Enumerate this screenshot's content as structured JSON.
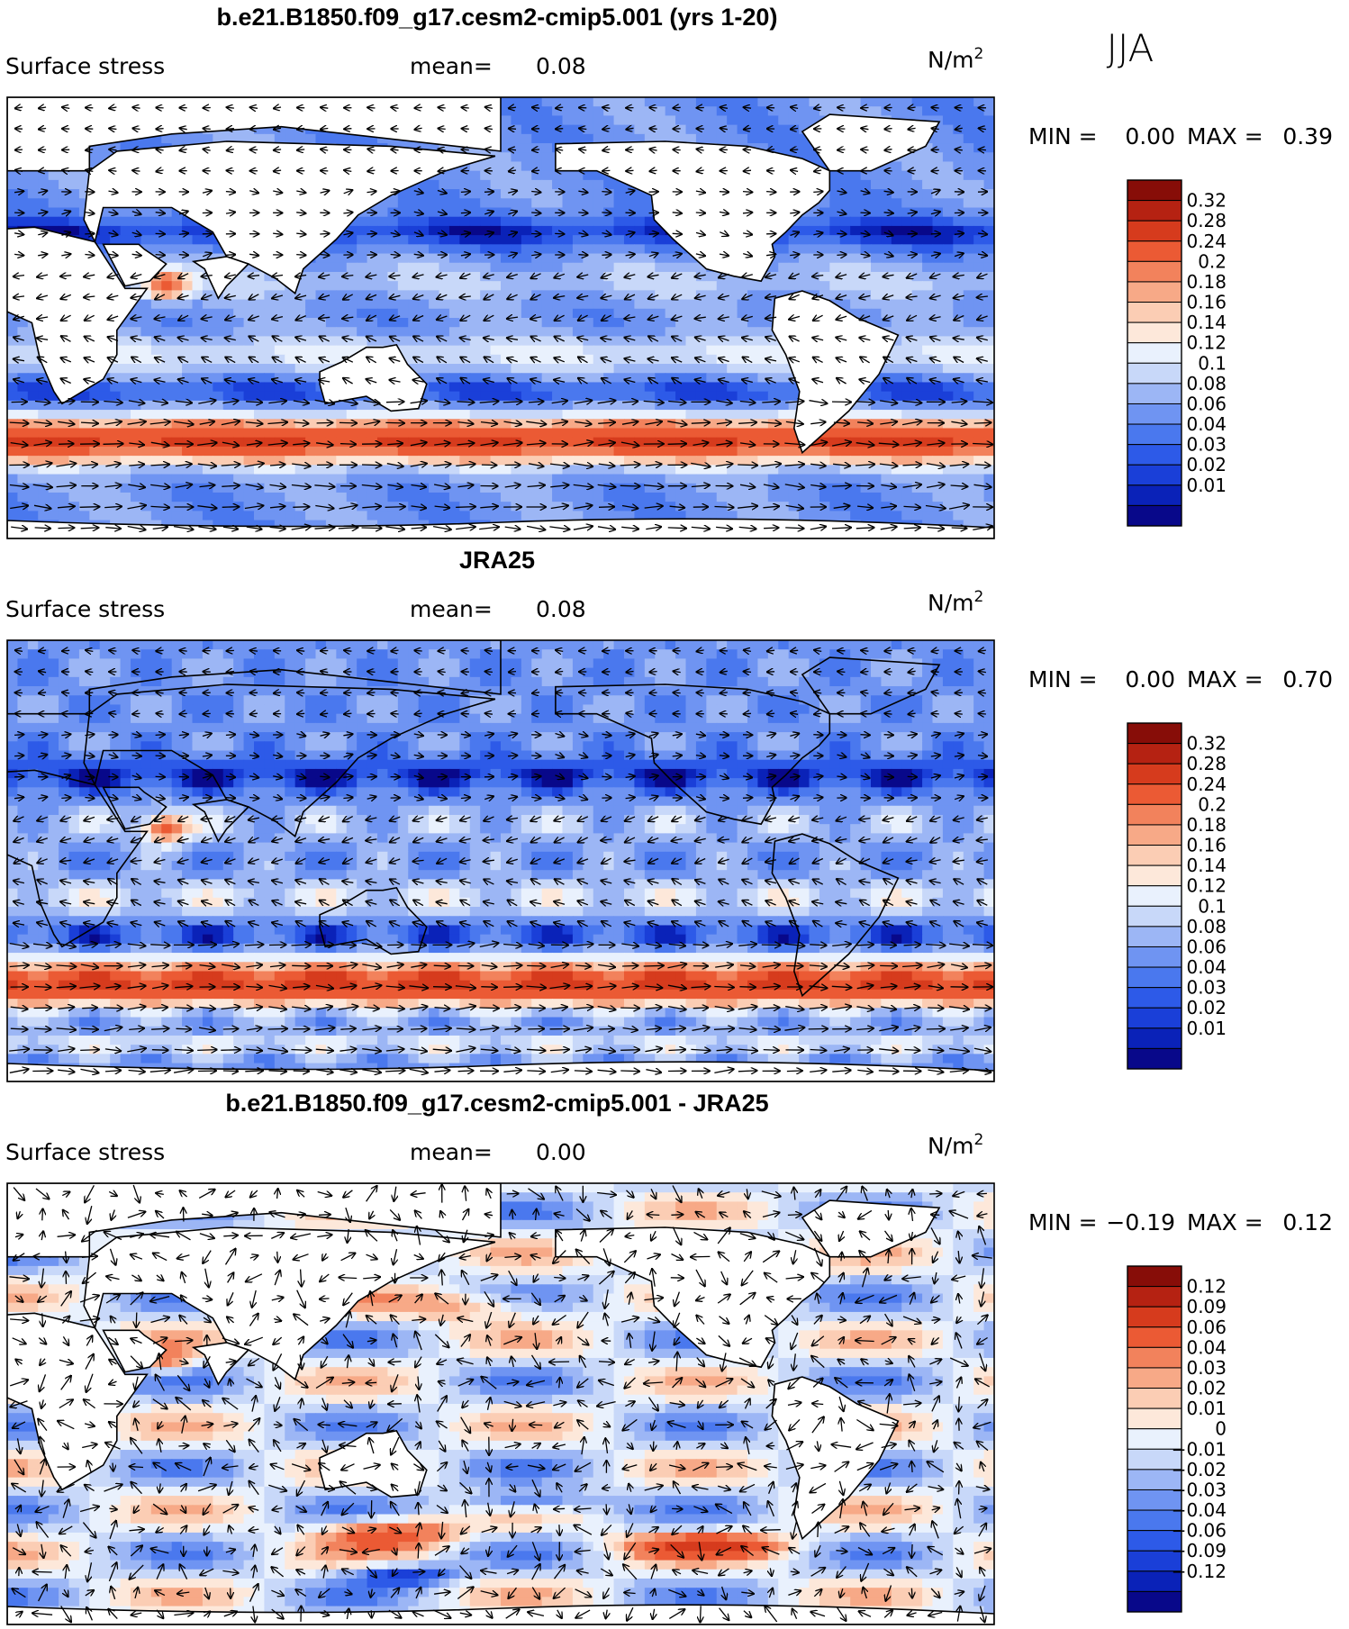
{
  "season": "JJA",
  "palette": {
    "abs": [
      "#08088a",
      "#0a22b8",
      "#1a3fd8",
      "#2d5ae8",
      "#4a78ee",
      "#6f94f2",
      "#9cb6f5",
      "#c8d8f9",
      "#e9f1fd",
      "#fde8da",
      "#fbcdb4",
      "#f7a987",
      "#f2825c",
      "#eb5a34",
      "#d63b1d",
      "#b52212",
      "#870d08"
    ],
    "diff": [
      "#08088a",
      "#0a22b8",
      "#1a3fd8",
      "#2d5ae8",
      "#4a78ee",
      "#6f94f2",
      "#9cb6f5",
      "#c8d8f9",
      "#e9f1fd",
      "#fde8da",
      "#fbcdb4",
      "#f7a987",
      "#f2825c",
      "#eb5a34",
      "#d63b1d",
      "#b52212",
      "#870d08"
    ]
  },
  "panels": [
    {
      "title": "b.e21.B1850.f09_g17.cesm2-cmip5.001 (yrs 1-20)",
      "variable": "Surface stress",
      "mean_label": "mean=",
      "mean_value": "0.08",
      "units_base": "N/m",
      "units_exp": "2",
      "min_label": "MIN =",
      "min_value": "0.00",
      "max_label": "MAX =",
      "max_value": "0.39",
      "colorbar_ticks": [
        "0.32",
        "0.28",
        "0.24",
        "0.2",
        "0.18",
        "0.16",
        "0.14",
        "0.12",
        "0.1",
        "0.08",
        "0.06",
        "0.04",
        "0.03",
        "0.02",
        "0.01"
      ]
    },
    {
      "title": "JRA25",
      "variable": "Surface stress",
      "mean_label": "mean=",
      "mean_value": "0.08",
      "units_base": "N/m",
      "units_exp": "2",
      "min_label": "MIN =",
      "min_value": "0.00",
      "max_label": "MAX =",
      "max_value": "0.70",
      "colorbar_ticks": [
        "0.32",
        "0.28",
        "0.24",
        "0.2",
        "0.18",
        "0.16",
        "0.14",
        "0.12",
        "0.1",
        "0.08",
        "0.06",
        "0.04",
        "0.03",
        "0.02",
        "0.01"
      ]
    },
    {
      "title": "b.e21.B1850.f09_g17.cesm2-cmip5.001 - JRA25",
      "variable": "Surface stress",
      "mean_label": "mean=",
      "mean_value": "0.00",
      "units_base": "N/m",
      "units_exp": "2",
      "min_label": "MIN =",
      "min_value": "−0.19",
      "max_label": "MAX =",
      "max_value": "0.12",
      "colorbar_ticks": [
        "0.12",
        "0.09",
        "0.06",
        "0.04",
        "0.03",
        "0.02",
        "0.01",
        "0",
        "−0.01",
        "−0.02",
        "−0.03",
        "−0.04",
        "−0.06",
        "−0.09",
        "−0.12"
      ]
    }
  ],
  "chart_data": [
    {
      "type": "heatmap",
      "title": "b.e21.B1850.f09_g17.cesm2-cmip5.001 (yrs 1-20)",
      "variable": "Surface stress",
      "units": "N/m2",
      "season": "JJA",
      "mean": 0.08,
      "min": 0.0,
      "max": 0.39,
      "levels": [
        0.01,
        0.02,
        0.03,
        0.04,
        0.06,
        0.08,
        0.1,
        0.12,
        0.14,
        0.16,
        0.18,
        0.2,
        0.24,
        0.28,
        0.32
      ],
      "overlay": "wind stress vectors"
    },
    {
      "type": "heatmap",
      "title": "JRA25",
      "variable": "Surface stress",
      "units": "N/m2",
      "season": "JJA",
      "mean": 0.08,
      "min": 0.0,
      "max": 0.7,
      "levels": [
        0.01,
        0.02,
        0.03,
        0.04,
        0.06,
        0.08,
        0.1,
        0.12,
        0.14,
        0.16,
        0.18,
        0.2,
        0.24,
        0.28,
        0.32
      ],
      "overlay": "wind stress vectors"
    },
    {
      "type": "heatmap",
      "title": "b.e21.B1850.f09_g17.cesm2-cmip5.001 - JRA25",
      "variable": "Surface stress",
      "units": "N/m2",
      "season": "JJA",
      "mean": 0.0,
      "min": -0.19,
      "max": 0.12,
      "levels": [
        -0.12,
        -0.09,
        -0.06,
        -0.04,
        -0.03,
        -0.02,
        -0.01,
        0,
        0.01,
        0.02,
        0.03,
        0.04,
        0.06,
        0.09,
        0.12
      ],
      "overlay": "wind stress difference vectors"
    }
  ]
}
